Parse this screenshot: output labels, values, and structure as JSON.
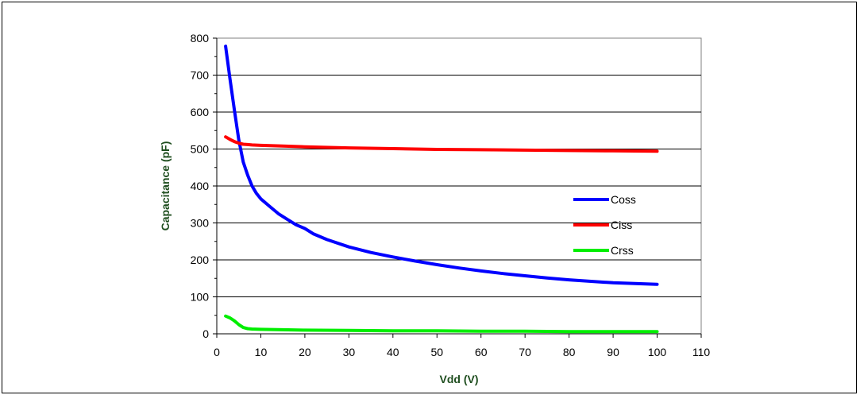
{
  "chart_data": {
    "type": "line",
    "title": "",
    "xlabel": "Vdd (V)",
    "ylabel": "Capacitance (pF)",
    "xlim": [
      0,
      110
    ],
    "ylim": [
      0,
      800
    ],
    "x_ticks": [
      0,
      10,
      20,
      30,
      40,
      50,
      60,
      70,
      80,
      90,
      100,
      110
    ],
    "y_ticks": [
      0,
      100,
      200,
      300,
      400,
      500,
      600,
      700,
      800
    ],
    "grid": "horizontal",
    "legend_position": "right",
    "axis_title_color": "#1f4e1f",
    "series": [
      {
        "name": "Coss",
        "color": "#0000ff",
        "x": [
          2,
          3,
          4,
          5,
          6,
          7,
          8,
          9,
          10,
          12,
          14,
          16,
          18,
          20,
          22,
          25,
          30,
          35,
          40,
          45,
          50,
          55,
          60,
          65,
          70,
          75,
          80,
          85,
          90,
          95,
          100
        ],
        "y": [
          778,
          690,
          605,
          525,
          465,
          430,
          400,
          380,
          365,
          345,
          325,
          310,
          295,
          285,
          270,
          255,
          235,
          220,
          208,
          197,
          187,
          178,
          170,
          163,
          157,
          151,
          146,
          142,
          138,
          136,
          134
        ]
      },
      {
        "name": "Ciss",
        "color": "#ff0000",
        "x": [
          2,
          3,
          4,
          5,
          6,
          7,
          8,
          10,
          15,
          20,
          30,
          40,
          50,
          60,
          70,
          80,
          90,
          100
        ],
        "y": [
          533,
          526,
          520,
          516,
          513,
          512,
          511,
          510,
          508,
          506,
          503,
          501,
          499,
          498,
          497,
          496,
          495,
          494
        ]
      },
      {
        "name": "Crss",
        "color": "#00ee00",
        "x": [
          2,
          3,
          4,
          5,
          6,
          7,
          8,
          10,
          15,
          20,
          30,
          40,
          50,
          60,
          70,
          80,
          90,
          100
        ],
        "y": [
          48,
          43,
          35,
          25,
          17,
          14,
          13,
          12,
          11,
          10,
          9,
          8,
          8,
          7,
          7,
          6,
          6,
          6
        ]
      }
    ]
  }
}
